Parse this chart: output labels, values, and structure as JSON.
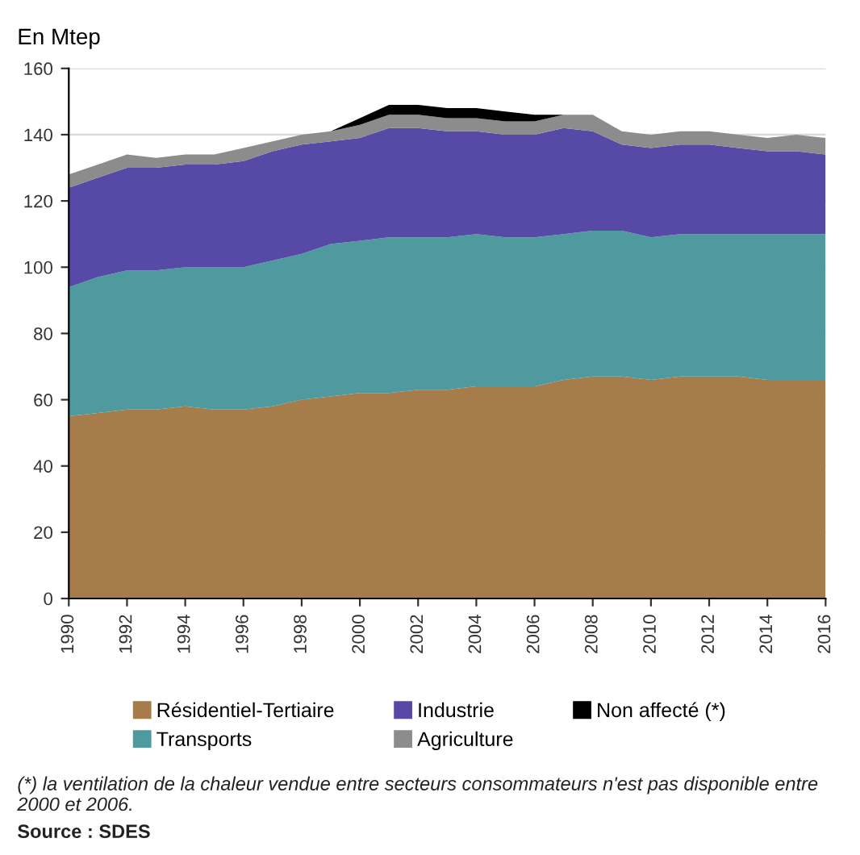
{
  "chart_data": {
    "type": "area",
    "stacked": true,
    "ylabel": "En Mtep",
    "x": [
      1990,
      1991,
      1992,
      1993,
      1994,
      1995,
      1996,
      1997,
      1998,
      1999,
      2000,
      2001,
      2002,
      2003,
      2004,
      2005,
      2006,
      2007,
      2008,
      2009,
      2010,
      2011,
      2012,
      2013,
      2014,
      2015,
      2016
    ],
    "series": [
      {
        "name": "Résidentiel-Tertiaire",
        "color": "#a57c4a",
        "values": [
          55,
          56,
          57,
          57,
          58,
          57,
          57,
          58,
          60,
          61,
          62,
          62,
          63,
          63,
          64,
          64,
          64,
          66,
          67,
          67,
          66,
          67,
          67,
          67,
          66,
          66,
          66
        ]
      },
      {
        "name": "Transports",
        "color": "#4e9a9e",
        "values": [
          39,
          41,
          42,
          42,
          42,
          43,
          43,
          44,
          44,
          46,
          46,
          47,
          46,
          46,
          46,
          45,
          45,
          44,
          44,
          44,
          43,
          43,
          43,
          43,
          44,
          44,
          44
        ]
      },
      {
        "name": "Industrie",
        "color": "#574aa6",
        "values": [
          30,
          30,
          31,
          31,
          31,
          31,
          32,
          33,
          33,
          31,
          31,
          33,
          33,
          32,
          31,
          31,
          31,
          32,
          30,
          26,
          27,
          27,
          27,
          26,
          25,
          25,
          24
        ]
      },
      {
        "name": "Agriculture",
        "color": "#8c8c8c",
        "values": [
          4,
          4,
          4,
          3,
          3,
          3,
          4,
          3,
          3,
          3,
          4,
          4,
          4,
          4,
          4,
          4,
          4,
          4,
          5,
          4,
          4,
          4,
          4,
          4,
          4,
          5,
          5
        ]
      },
      {
        "name": "Non affecté (*)",
        "color": "#000000",
        "values": [
          null,
          null,
          null,
          null,
          null,
          null,
          null,
          null,
          null,
          0,
          2,
          3,
          3,
          3,
          3,
          3,
          2,
          0,
          null,
          null,
          null,
          null,
          null,
          null,
          null,
          null,
          null
        ]
      }
    ],
    "xlim": [
      1990,
      2016
    ],
    "xticks": [
      1990,
      1992,
      1994,
      1996,
      1998,
      2000,
      2002,
      2004,
      2006,
      2008,
      2010,
      2012,
      2014,
      2016
    ],
    "ylim": [
      0,
      160
    ],
    "yticks": [
      0,
      20,
      40,
      60,
      80,
      100,
      120,
      140,
      160
    ],
    "grid": "y",
    "legend": "bottom",
    "annotations": [
      "(*) la ventilation de la chaleur vendue entre secteurs consommateurs n'est pas disponible entre 2000 et 2006.",
      "Source : SDES"
    ]
  }
}
